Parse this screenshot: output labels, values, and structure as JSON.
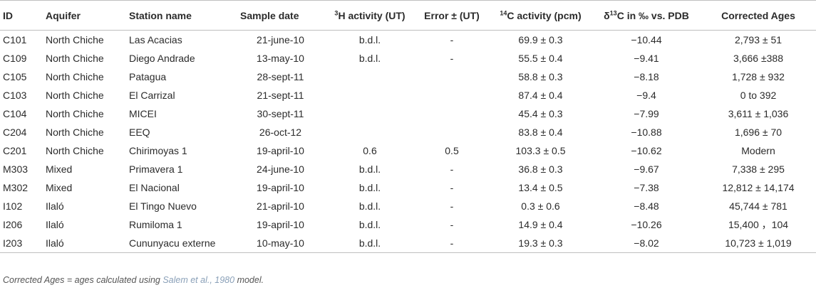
{
  "table": {
    "headers": {
      "id": "ID",
      "aquifer": "Aquifer",
      "station": "Station name",
      "date": "Sample date",
      "h3_sup": "3",
      "h3_rest": "H activity (UT)",
      "error": "Error ± (UT)",
      "c14_sup": "14",
      "c14_rest": "C activity (pcm)",
      "d13_pre": "δ",
      "d13_sup": "13",
      "d13_rest": "C in ‰ vs. PDB",
      "ages": "Corrected Ages"
    },
    "rows": [
      {
        "id": "C101",
        "aquifer": "North Chiche",
        "station": "Las Acacias",
        "date": "21-june-10",
        "h3": "b.d.l.",
        "error": "-",
        "c14": "69.9 ± 0.3",
        "d13": "−10.44",
        "ages": "2,793 ± 51"
      },
      {
        "id": "C109",
        "aquifer": "North Chiche",
        "station": "Diego Andrade",
        "date": "13-may-10",
        "h3": "b.d.l.",
        "error": "-",
        "c14": "55.5 ± 0.4",
        "d13": "−9.41",
        "ages": "3,666 ±388"
      },
      {
        "id": "C105",
        "aquifer": "North Chiche",
        "station": "Patagua",
        "date": "28-sept-11",
        "h3": "",
        "error": "",
        "c14": "58.8 ± 0.3",
        "d13": "−8.18",
        "ages": "1,728 ± 932"
      },
      {
        "id": "C103",
        "aquifer": "North Chiche",
        "station": "El Carrizal",
        "date": "21-sept-11",
        "h3": "",
        "error": "",
        "c14": "87.4 ± 0.4",
        "d13": "−9.4",
        "ages": "0 to 392"
      },
      {
        "id": "C104",
        "aquifer": "North Chiche",
        "station": "MICEI",
        "date": "30-sept-11",
        "h3": "",
        "error": "",
        "c14": "45.4 ± 0.3",
        "d13": "−7.99",
        "ages": "3,611 ± 1,036"
      },
      {
        "id": "C204",
        "aquifer": "North Chiche",
        "station": "EEQ",
        "date": "26-oct-12",
        "h3": "",
        "error": "",
        "c14": "83.8 ± 0.4",
        "d13": "−10.88",
        "ages": "1,696 ± 70"
      },
      {
        "id": "C201",
        "aquifer": "North Chiche",
        "station": "Chirimoyas 1",
        "date": "19-april-10",
        "h3": "0.6",
        "error": "0.5",
        "c14": "103.3 ± 0.5",
        "d13": "−10.62",
        "ages": "Modern"
      },
      {
        "id": "M303",
        "aquifer": "Mixed",
        "station": "Primavera 1",
        "date": "24-june-10",
        "h3": "b.d.l.",
        "error": "-",
        "c14": "36.8 ± 0.3",
        "d13": "−9.67",
        "ages": "7,338 ± 295"
      },
      {
        "id": "M302",
        "aquifer": "Mixed",
        "station": "El Nacional",
        "date": "19-april-10",
        "h3": "b.d.l.",
        "error": "-",
        "c14": "13.4 ± 0.5",
        "d13": "−7.38",
        "ages": "12,812 ± 14,174"
      },
      {
        "id": "I102",
        "aquifer": "Ilaló",
        "station": "El Tingo Nuevo",
        "date": "21-april-10",
        "h3": "b.d.l.",
        "error": "-",
        "c14": "0.3 ± 0.6",
        "d13": "−8.48",
        "ages": "45,744 ± 781"
      },
      {
        "id": "I206",
        "aquifer": "Ilaló",
        "station": "Rumiloma 1",
        "date": "19-april-10",
        "h3": "b.d.l.",
        "error": "-",
        "c14": "14.9 ± 0.4",
        "d13": "−10.26",
        "ages": "15,400 ，104"
      },
      {
        "id": "I203",
        "aquifer": "Ilaló",
        "station": "Cununyacu externe",
        "date": "10-may-10",
        "h3": "b.d.l.",
        "error": "-",
        "c14": "19.3 ± 0.3",
        "d13": "−8.02",
        "ages": "10,723 ± 1,019"
      }
    ]
  },
  "footnote": {
    "prefix": "Corrected Ages = ages calculated using ",
    "reference": "Salem et al., 1980",
    "suffix": " model."
  }
}
